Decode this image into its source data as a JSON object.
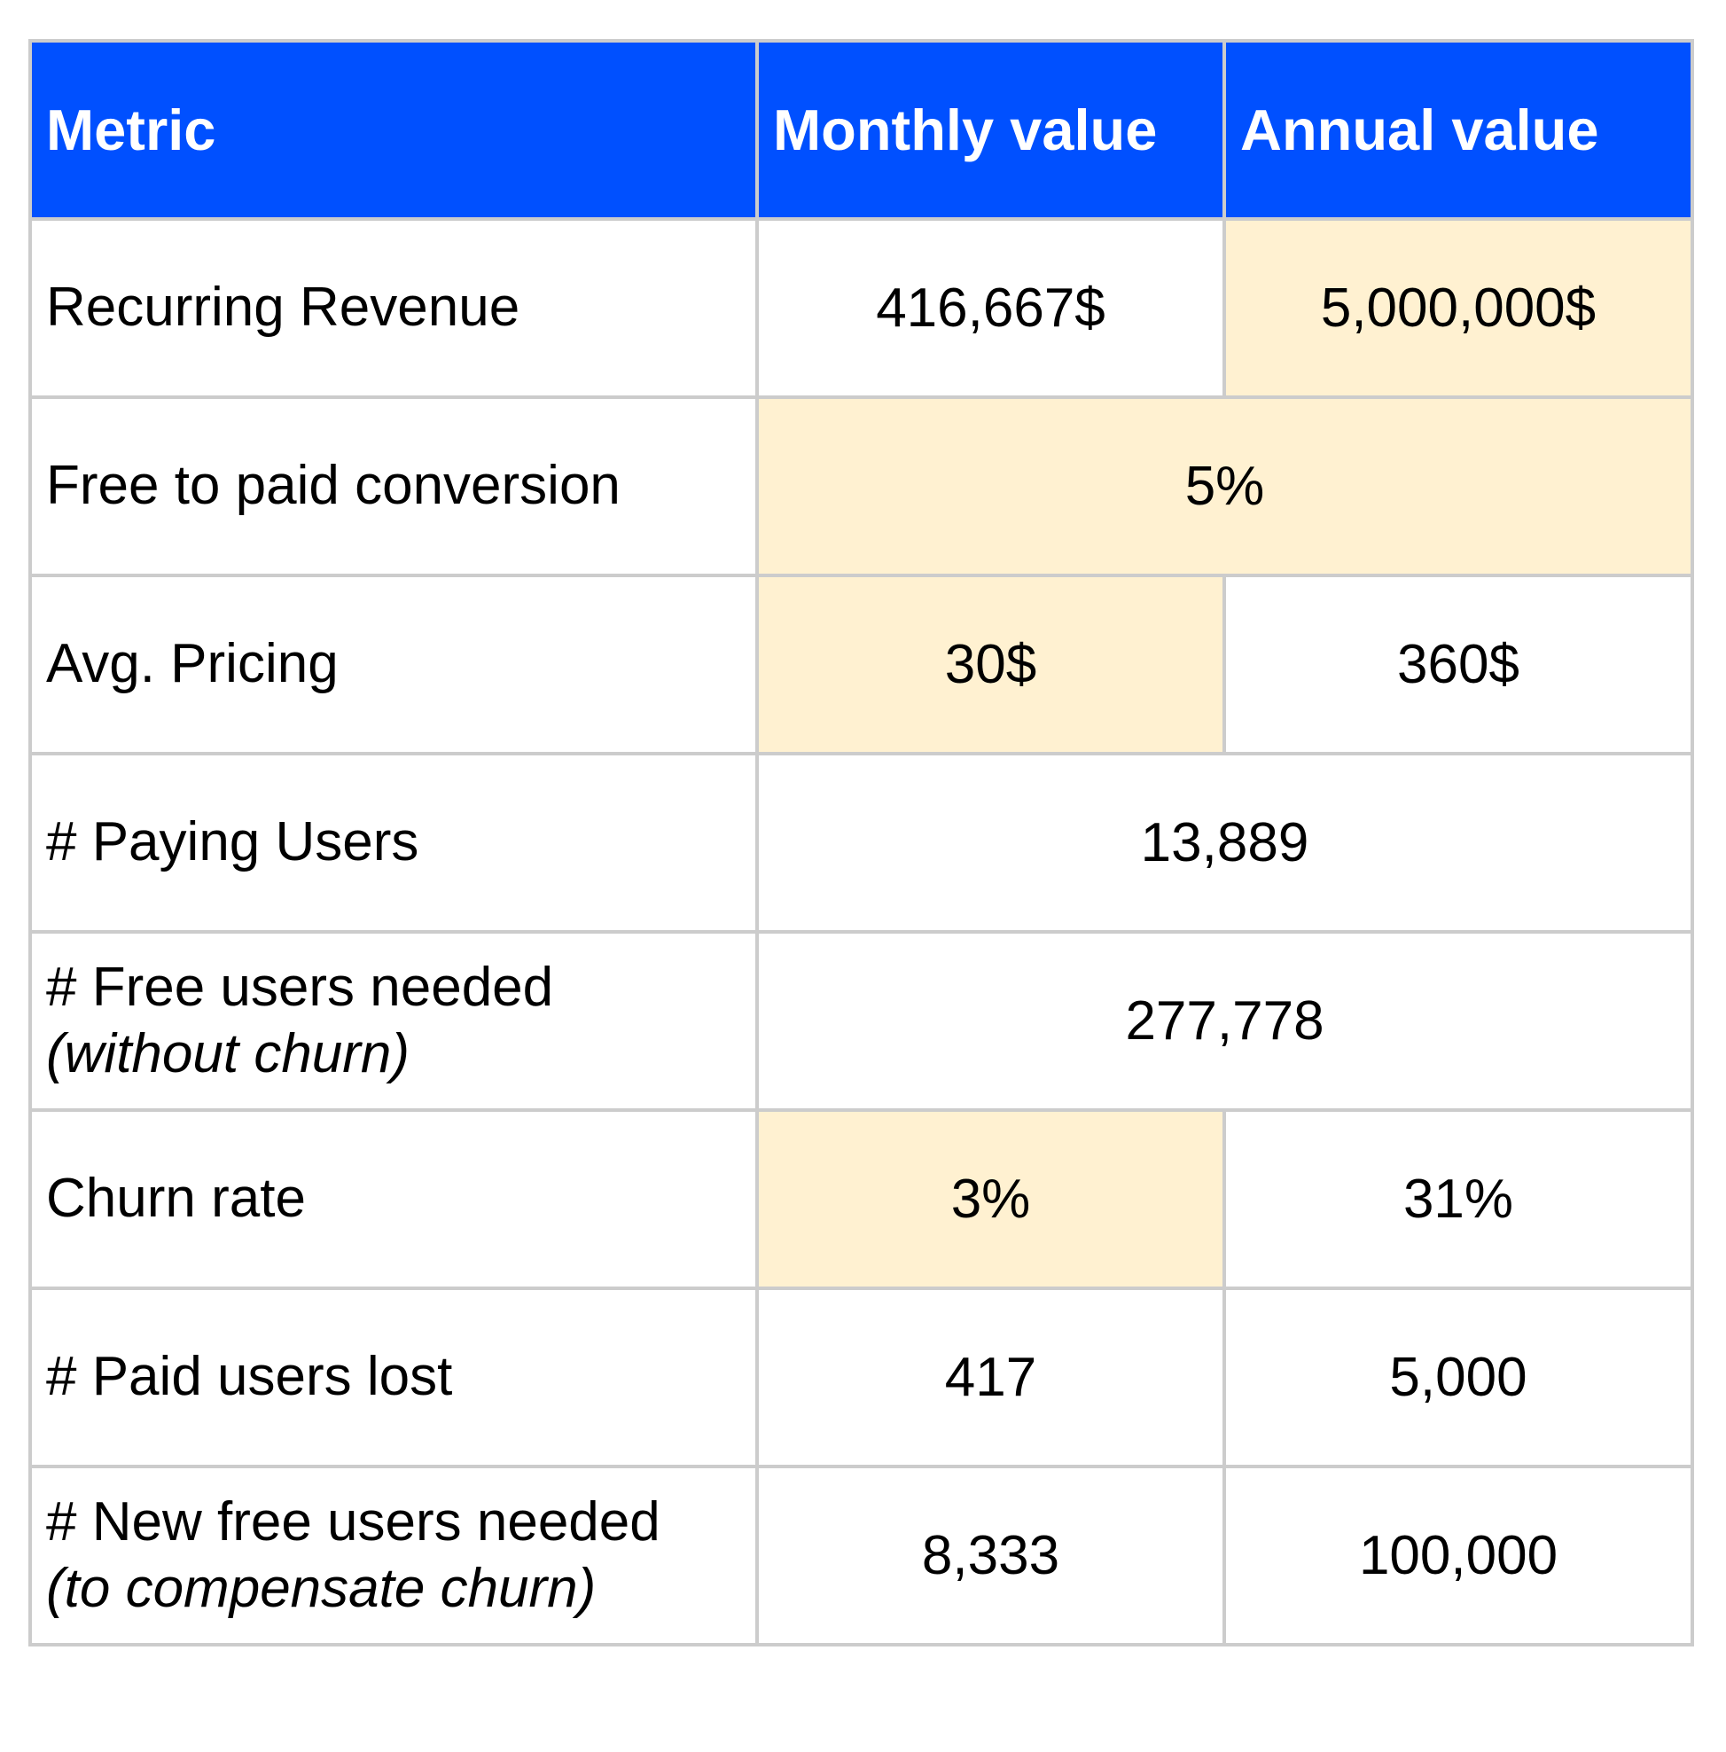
{
  "table": {
    "headers": {
      "metric": "Metric",
      "monthly": "Monthly value",
      "annual": "Annual value"
    },
    "rows": [
      {
        "label": "Recurring Revenue",
        "monthly": "416,667$",
        "annual": "5,000,000$"
      },
      {
        "label": "Free to paid conversion",
        "merged": "5%"
      },
      {
        "label": "Avg. Pricing",
        "monthly": "30$",
        "annual": "360$"
      },
      {
        "label": "# Paying Users",
        "merged": "13,889"
      },
      {
        "label": "# Free users needed",
        "sublabel": "(without churn)",
        "merged": "277,778"
      },
      {
        "label": "Churn rate",
        "monthly": "3%",
        "annual": "31%"
      },
      {
        "label": "# Paid users lost",
        "monthly": "417",
        "annual": "5,000"
      },
      {
        "label": "# New free users needed",
        "sublabel": "(to compensate churn)",
        "monthly": "8,333",
        "annual": "100,000"
      }
    ]
  },
  "colors": {
    "header_bg": "#0050ff",
    "highlight_bg": "#fff1d1",
    "border": "#cccccc"
  }
}
